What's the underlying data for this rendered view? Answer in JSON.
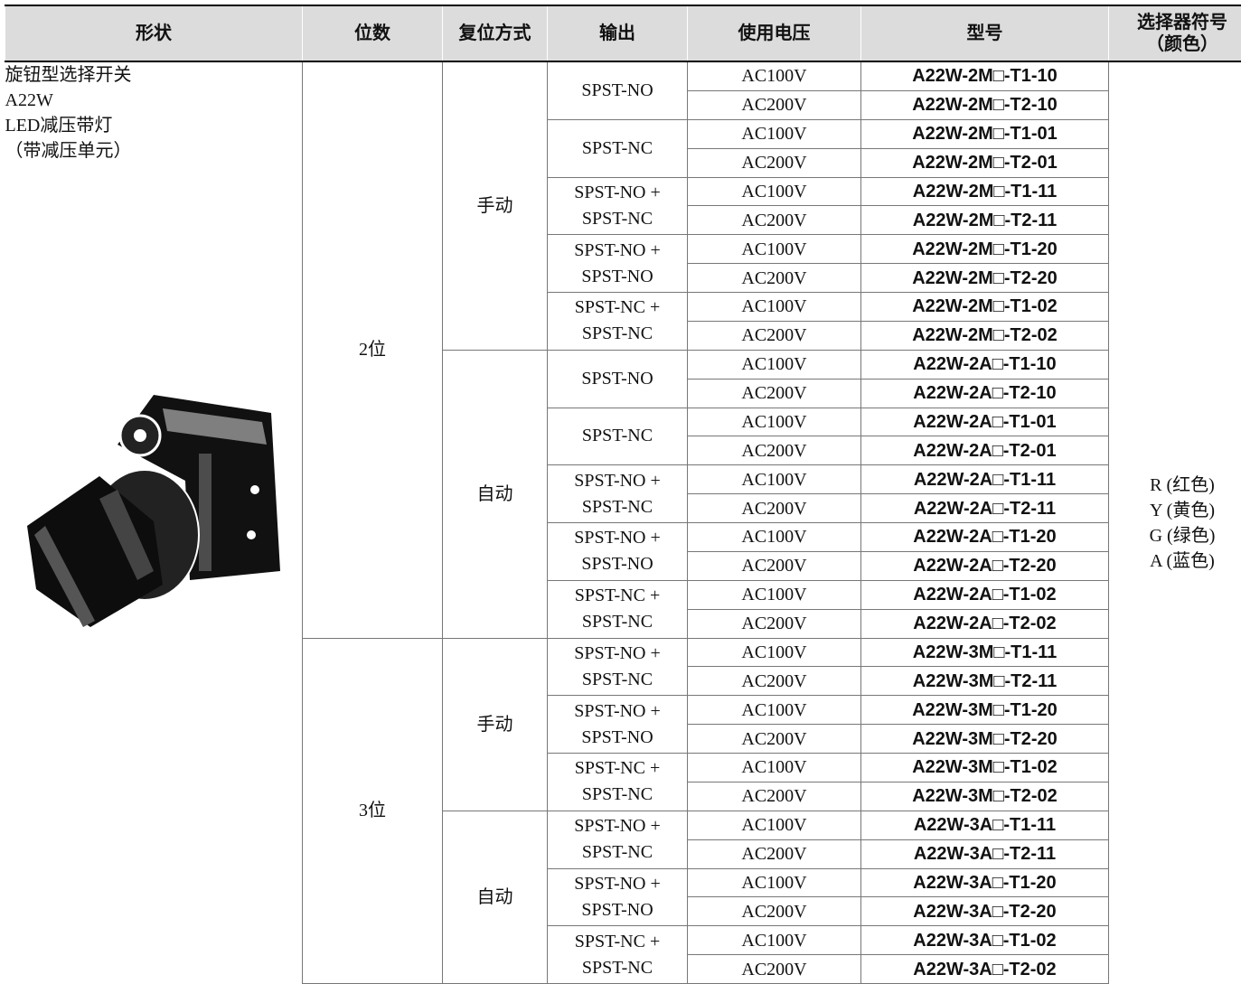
{
  "header": [
    "形状",
    "位数",
    "复位方式",
    "输出",
    "使用电压",
    "型号",
    [
      "选择器符号",
      "（颜色）"
    ]
  ],
  "shape": [
    "旋钮型选择开关",
    "A22W",
    "LED减压带灯",
    "（带减压单元）"
  ],
  "colors": [
    "R (红色)",
    "Y (黄色)",
    "G (绿色)",
    "A (蓝色)"
  ],
  "positions": [
    {
      "label": "2位",
      "resets": [
        {
          "label": "手动",
          "outputs": [
            {
              "label": [
                "SPST-NO"
              ],
              "rows": [
                {
                  "voltage": "AC100V",
                  "model": "A22W-2M□-T1-10"
                },
                {
                  "voltage": "AC200V",
                  "model": "A22W-2M□-T2-10"
                }
              ]
            },
            {
              "label": [
                "SPST-NC"
              ],
              "rows": [
                {
                  "voltage": "AC100V",
                  "model": "A22W-2M□-T1-01"
                },
                {
                  "voltage": "AC200V",
                  "model": "A22W-2M□-T2-01"
                }
              ]
            },
            {
              "label": [
                "SPST-NO +",
                "SPST-NC"
              ],
              "rows": [
                {
                  "voltage": "AC100V",
                  "model": "A22W-2M□-T1-11"
                },
                {
                  "voltage": "AC200V",
                  "model": "A22W-2M□-T2-11"
                }
              ]
            },
            {
              "label": [
                "SPST-NO +",
                "SPST-NO"
              ],
              "rows": [
                {
                  "voltage": "AC100V",
                  "model": "A22W-2M□-T1-20"
                },
                {
                  "voltage": "AC200V",
                  "model": "A22W-2M□-T2-20"
                }
              ]
            },
            {
              "label": [
                "SPST-NC +",
                "SPST-NC"
              ],
              "rows": [
                {
                  "voltage": "AC100V",
                  "model": "A22W-2M□-T1-02"
                },
                {
                  "voltage": "AC200V",
                  "model": "A22W-2M□-T2-02"
                }
              ]
            }
          ]
        },
        {
          "label": "自动",
          "outputs": [
            {
              "label": [
                "SPST-NO"
              ],
              "rows": [
                {
                  "voltage": "AC100V",
                  "model": "A22W-2A□-T1-10"
                },
                {
                  "voltage": "AC200V",
                  "model": "A22W-2A□-T2-10"
                }
              ]
            },
            {
              "label": [
                "SPST-NC"
              ],
              "rows": [
                {
                  "voltage": "AC100V",
                  "model": "A22W-2A□-T1-01"
                },
                {
                  "voltage": "AC200V",
                  "model": "A22W-2A□-T2-01"
                }
              ]
            },
            {
              "label": [
                "SPST-NO +",
                "SPST-NC"
              ],
              "rows": [
                {
                  "voltage": "AC100V",
                  "model": "A22W-2A□-T1-11"
                },
                {
                  "voltage": "AC200V",
                  "model": "A22W-2A□-T2-11"
                }
              ]
            },
            {
              "label": [
                "SPST-NO +",
                "SPST-NO"
              ],
              "rows": [
                {
                  "voltage": "AC100V",
                  "model": "A22W-2A□-T1-20"
                },
                {
                  "voltage": "AC200V",
                  "model": "A22W-2A□-T2-20"
                }
              ]
            },
            {
              "label": [
                "SPST-NC +",
                "SPST-NC"
              ],
              "rows": [
                {
                  "voltage": "AC100V",
                  "model": "A22W-2A□-T1-02"
                },
                {
                  "voltage": "AC200V",
                  "model": "A22W-2A□-T2-02"
                }
              ]
            }
          ]
        }
      ]
    },
    {
      "label": "3位",
      "resets": [
        {
          "label": "手动",
          "outputs": [
            {
              "label": [
                "SPST-NO +",
                "SPST-NC"
              ],
              "rows": [
                {
                  "voltage": "AC100V",
                  "model": "A22W-3M□-T1-11"
                },
                {
                  "voltage": "AC200V",
                  "model": "A22W-3M□-T2-11"
                }
              ]
            },
            {
              "label": [
                "SPST-NO +",
                "SPST-NO"
              ],
              "rows": [
                {
                  "voltage": "AC100V",
                  "model": "A22W-3M□-T1-20"
                },
                {
                  "voltage": "AC200V",
                  "model": "A22W-3M□-T2-20"
                }
              ]
            },
            {
              "label": [
                "SPST-NC +",
                "SPST-NC"
              ],
              "rows": [
                {
                  "voltage": "AC100V",
                  "model": "A22W-3M□-T1-02"
                },
                {
                  "voltage": "AC200V",
                  "model": "A22W-3M□-T2-02"
                }
              ]
            }
          ]
        },
        {
          "label": "自动",
          "outputs": [
            {
              "label": [
                "SPST-NO +",
                "SPST-NC"
              ],
              "rows": [
                {
                  "voltage": "AC100V",
                  "model": "A22W-3A□-T1-11"
                },
                {
                  "voltage": "AC200V",
                  "model": "A22W-3A□-T2-11"
                }
              ]
            },
            {
              "label": [
                "SPST-NO +",
                "SPST-NO"
              ],
              "rows": [
                {
                  "voltage": "AC100V",
                  "model": "A22W-3A□-T1-20"
                },
                {
                  "voltage": "AC200V",
                  "model": "A22W-3A□-T2-20"
                }
              ]
            },
            {
              "label": [
                "SPST-NC +",
                "SPST-NC"
              ],
              "rows": [
                {
                  "voltage": "AC100V",
                  "model": "A22W-3A□-T1-02"
                },
                {
                  "voltage": "AC200V",
                  "model": "A22W-3A□-T2-02"
                }
              ]
            }
          ]
        }
      ]
    }
  ]
}
